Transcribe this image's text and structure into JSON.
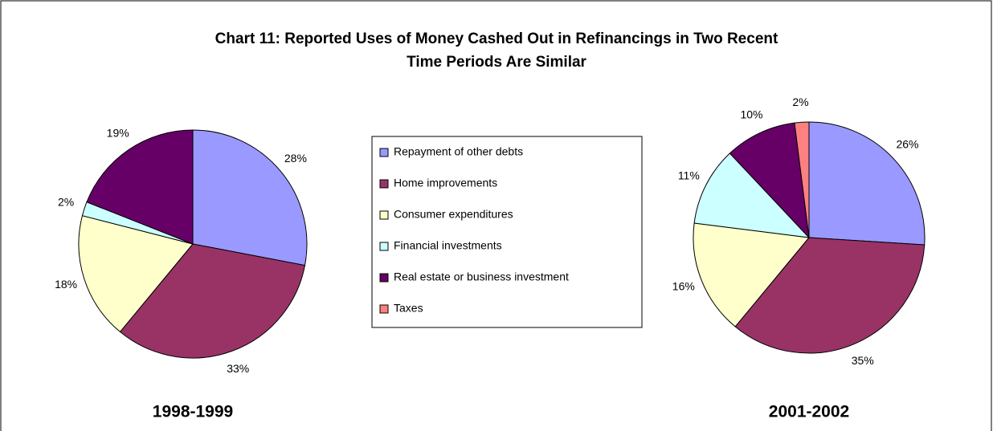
{
  "title": [
    "Chart 11: Reported Uses of Money Cashed Out in Refinancings in Two Recent",
    "Time Periods Are Similar"
  ],
  "chart_data": [
    {
      "type": "pie",
      "subtitle": "1998-1999",
      "categories": [
        "Repayment of other debts",
        "Home improvements",
        "Consumer expenditures",
        "Financial investments",
        "Real estate or business investment"
      ],
      "values": [
        28,
        33,
        18,
        2,
        19
      ],
      "value_labels": [
        "28%",
        "33%",
        "18%",
        "2%",
        "19%"
      ],
      "colors": [
        "#9999ff",
        "#993366",
        "#ffffcc",
        "#ccffff",
        "#660066"
      ]
    },
    {
      "type": "pie",
      "subtitle": "2001-2002",
      "categories": [
        "Repayment of other debts",
        "Home improvements",
        "Consumer expenditures",
        "Financial investments",
        "Real estate or business investment",
        "Taxes"
      ],
      "values": [
        26,
        35,
        16,
        11,
        10,
        2
      ],
      "value_labels": [
        "26%",
        "35%",
        "16%",
        "11%",
        "10%",
        "2%"
      ],
      "colors": [
        "#9999ff",
        "#993366",
        "#ffffcc",
        "#ccffff",
        "#660066",
        "#ff8080"
      ]
    }
  ]
}
